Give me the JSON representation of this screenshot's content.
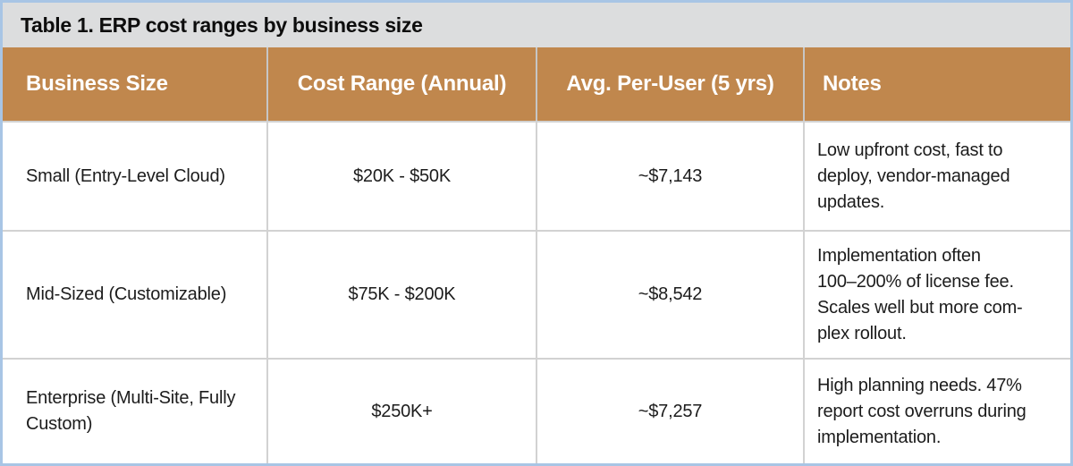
{
  "colors": {
    "outer_border": "#a8c5e5",
    "title_bar_bg": "#dcddde",
    "header_bg": "#c0874d",
    "header_text": "#ffffff",
    "grid_line": "#d2d2d2",
    "body_text": "#1c1c1c"
  },
  "table": {
    "title": "Table 1. ERP cost ranges by business size",
    "columns": [
      "Business Size",
      "Cost Range (Annual)",
      "Avg. Per-User (5 yrs)",
      "Notes"
    ],
    "rows": [
      {
        "business_size": "Small (Entry-Level Cloud)",
        "cost_range": "$20K - $50K",
        "avg_per_user": "~$7,143",
        "notes": "Low upfront cost, fast to deploy, vendor-managed updates.",
        "notes_lines": [
          "Low upfront cost, fast to",
          "deploy, vendor-managed",
          "updates."
        ]
      },
      {
        "business_size": "Mid-Sized (Customizable)",
        "cost_range": "$75K - $200K",
        "avg_per_user": "~$8,542",
        "notes": "Implementation often 100–200% of license fee. Scales well but more complex rollout.",
        "notes_lines": [
          "Implementation often",
          "100–200% of license fee.",
          "Scales well but more com-",
          "plex rollout."
        ]
      },
      {
        "business_size": "Enterprise (Multi-Site, Fully Custom)",
        "business_size_lines": [
          "Enterprise (Multi-Site, Fully",
          "Custom)"
        ],
        "cost_range": "$250K+",
        "avg_per_user": "~$7,257",
        "notes": "High planning needs. 47% report cost overruns during implementation.",
        "notes_lines": [
          "High planning needs. 47%",
          "report cost overruns during",
          "implementation."
        ]
      }
    ]
  }
}
